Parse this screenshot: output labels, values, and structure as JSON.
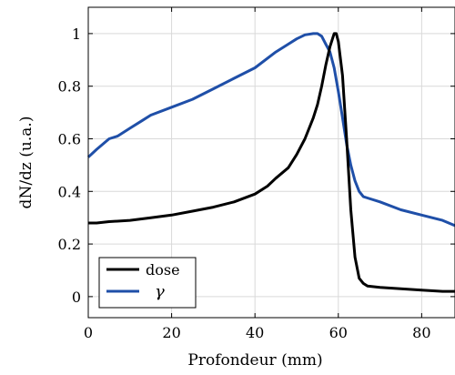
{
  "chart_data": {
    "type": "line",
    "title": "",
    "xlabel": "Profondeur (mm)",
    "ylabel": "dN/dz (u.a.)",
    "xlim": [
      0,
      88
    ],
    "ylim": [
      -0.08,
      1.1
    ],
    "xticks": [
      0,
      20,
      40,
      60,
      80
    ],
    "yticks": [
      0,
      0.2,
      0.4,
      0.6,
      0.8,
      1
    ],
    "x_tick_labels": [
      "0",
      "20",
      "40",
      "60",
      "80"
    ],
    "y_tick_labels": [
      "0",
      "0.2",
      "0.4",
      "0.6",
      "0.8",
      "1"
    ],
    "grid": true,
    "legend_position": "bottom-left",
    "series": [
      {
        "name": "dose",
        "color": "#000000",
        "x": [
          0,
          2,
          5,
          10,
          15,
          20,
          25,
          30,
          35,
          40,
          43,
          45,
          48,
          50,
          52,
          54,
          55,
          56,
          57,
          58,
          59,
          59.5,
          60,
          61,
          62,
          63,
          64,
          65,
          66,
          67,
          70,
          75,
          80,
          85,
          88
        ],
        "y": [
          0.28,
          0.28,
          0.285,
          0.29,
          0.3,
          0.31,
          0.325,
          0.34,
          0.36,
          0.39,
          0.42,
          0.45,
          0.49,
          0.54,
          0.6,
          0.68,
          0.73,
          0.8,
          0.88,
          0.95,
          1.0,
          1.0,
          0.97,
          0.84,
          0.6,
          0.33,
          0.15,
          0.07,
          0.05,
          0.04,
          0.035,
          0.03,
          0.025,
          0.02,
          0.02
        ]
      },
      {
        "name": "γ",
        "color": "#1f4fa8",
        "x": [
          0,
          2,
          5,
          7,
          10,
          13,
          15,
          20,
          25,
          30,
          35,
          40,
          45,
          48,
          50,
          52,
          54,
          55,
          56,
          57,
          58,
          59,
          60,
          61,
          62,
          63,
          64,
          65,
          66,
          67,
          70,
          75,
          80,
          85,
          88
        ],
        "y": [
          0.53,
          0.56,
          0.6,
          0.61,
          0.64,
          0.67,
          0.69,
          0.72,
          0.75,
          0.79,
          0.83,
          0.87,
          0.93,
          0.96,
          0.98,
          0.995,
          1.0,
          1.0,
          0.99,
          0.96,
          0.93,
          0.87,
          0.78,
          0.68,
          0.58,
          0.5,
          0.44,
          0.4,
          0.38,
          0.375,
          0.36,
          0.33,
          0.31,
          0.29,
          0.27
        ]
      }
    ]
  }
}
